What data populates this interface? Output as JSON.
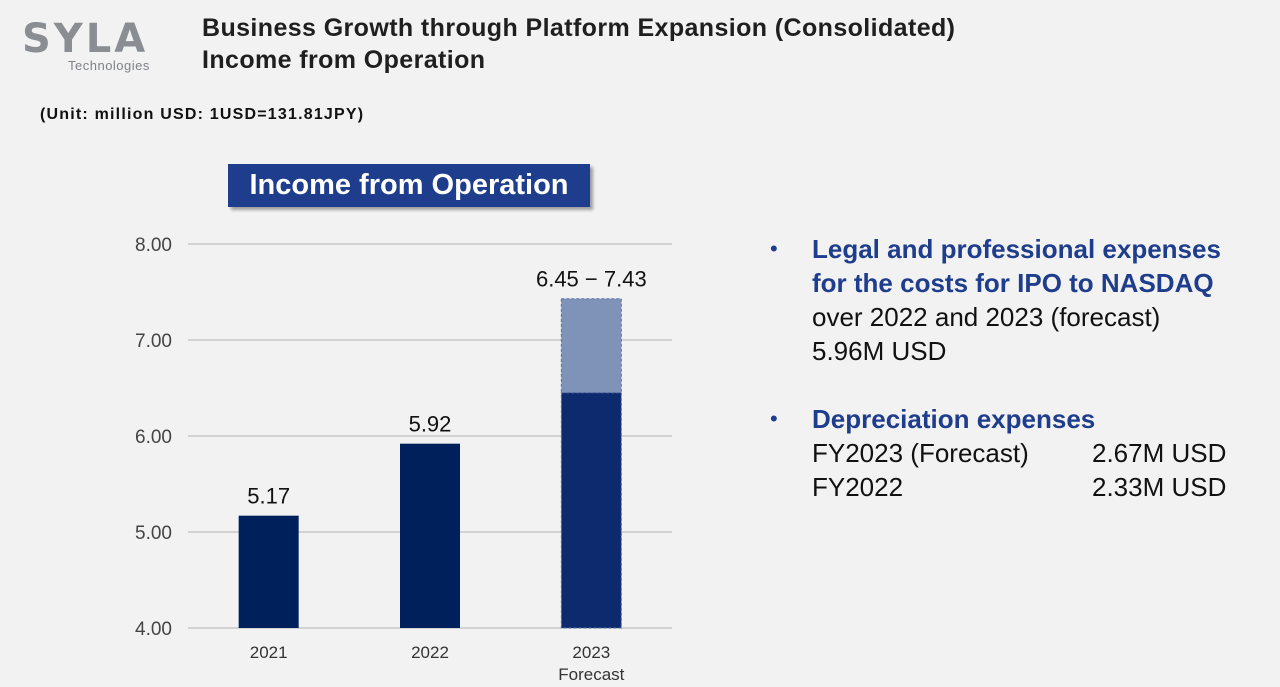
{
  "logo": {
    "brand": "SYLA",
    "sub": "Technologies"
  },
  "header": {
    "title_line1": "Business Growth through Platform Expansion (Consolidated)",
    "title_line2": "Income from Operation"
  },
  "unit_note": "(Unit: million USD: 1USD=131.81JPY)",
  "chart_data": {
    "type": "bar",
    "title": "Income from Operation",
    "categories": [
      "2021",
      "2022",
      "2023"
    ],
    "category_sublabels": [
      "",
      "",
      "Forecast"
    ],
    "values": [
      5.17,
      5.92,
      6.45
    ],
    "forecast_range": {
      "category": "2023",
      "low": 6.45,
      "high": 7.43
    },
    "data_labels": [
      "5.17",
      "5.92",
      "6.45 − 7.43"
    ],
    "ylim": [
      4.0,
      8.0
    ],
    "yticks": [
      4.0,
      5.0,
      6.0,
      7.0,
      8.0
    ],
    "ytick_labels": [
      "4.00",
      "5.00",
      "6.00",
      "7.00",
      "8.00"
    ],
    "grid": true,
    "xlabel": "",
    "ylabel": "",
    "colors": {
      "bar": "#00205b",
      "forecast_bar": "#0d2a6e",
      "range": "#7f93b8",
      "grid": "#c8c8c8"
    }
  },
  "notes": {
    "bullet": "•",
    "item1": {
      "head_line1": "Legal and professional expenses",
      "head_line2": "for the costs for IPO to NASDAQ",
      "text_line1": "over 2022 and 2023 (forecast)",
      "text_line2": "5.96M USD"
    },
    "item2": {
      "head": "Depreciation expenses",
      "rows": [
        {
          "label": "FY2023 (Forecast)",
          "value": "2.67M USD"
        },
        {
          "label": "FY2022",
          "value": "2.33M USD"
        }
      ]
    }
  }
}
